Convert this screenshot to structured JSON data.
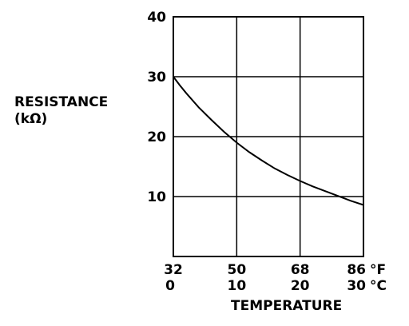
{
  "chart_data": {
    "type": "line",
    "title": "",
    "ylabel": "RESISTANCE",
    "ylabel_unit": "(kΩ)",
    "xlabel": "TEMPERATURE",
    "x_unit_f": "°F",
    "x_unit_c": "°C",
    "x_ticks_f": [
      "32",
      "50",
      "68",
      "86"
    ],
    "x_ticks_c": [
      "0",
      "10",
      "20",
      "30"
    ],
    "y_ticks": [
      "10",
      "20",
      "30",
      "40"
    ],
    "xlim_c": [
      0,
      30
    ],
    "ylim": [
      0,
      40
    ],
    "grid": true,
    "series": [
      {
        "x": [
          0,
          1,
          2,
          4,
          6,
          8,
          10,
          12,
          14,
          16,
          18,
          20,
          22,
          24,
          26,
          28,
          30
        ],
        "y": [
          30,
          28.6,
          27.3,
          24.9,
          22.8,
          20.8,
          19.0,
          17.4,
          16.0,
          14.7,
          13.6,
          12.6,
          11.7,
          10.9,
          10.1,
          9.3,
          8.6
        ]
      }
    ],
    "line_color": "#000000"
  }
}
